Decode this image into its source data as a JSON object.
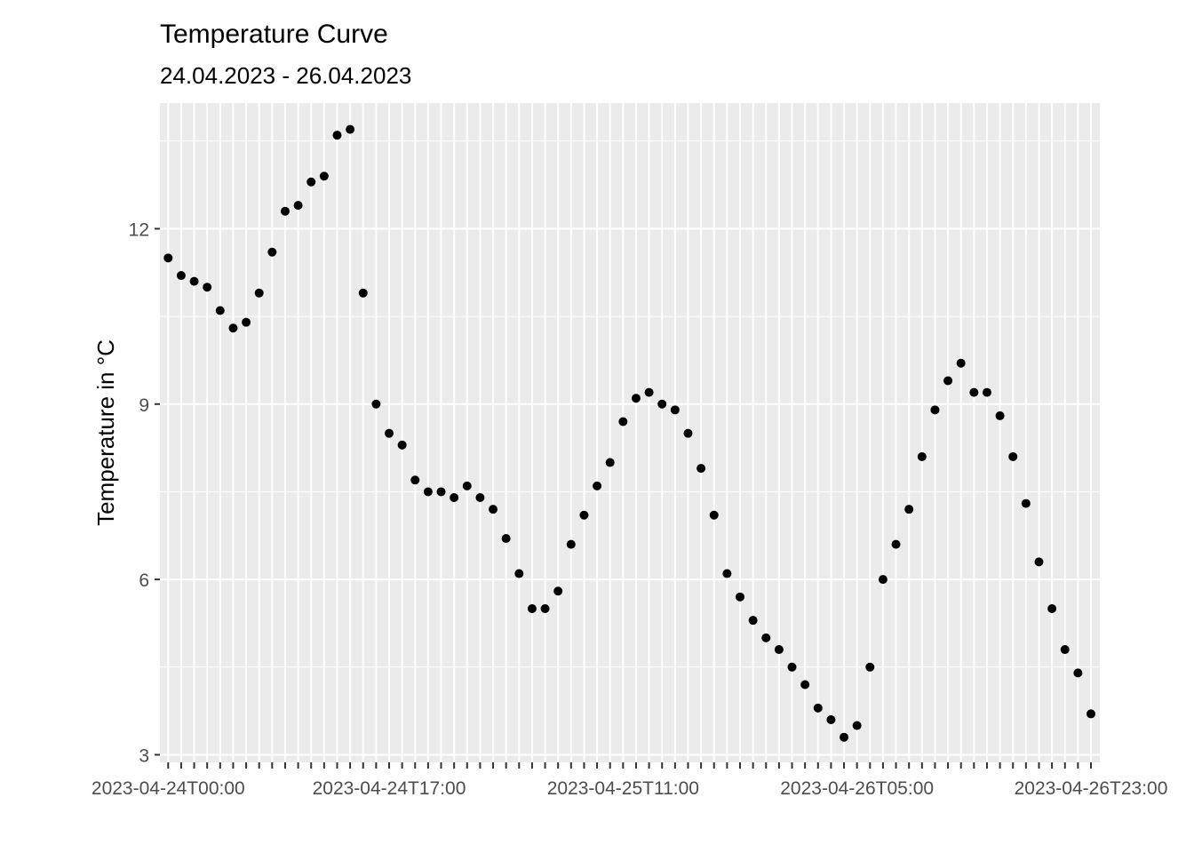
{
  "chart_data": {
    "type": "scatter",
    "title": "Temperature Curve",
    "subtitle": "24.04.2023 - 26.04.2023",
    "xlabel": "",
    "ylabel": "Temperature in °C",
    "x_start": "2023-04-24T00:00",
    "x_step_hours": 1,
    "x_tick_labels": [
      "2023-04-24T00:00",
      "2023-04-24T17:00",
      "2023-04-25T11:00",
      "2023-04-26T05:00",
      "2023-04-26T23:00"
    ],
    "y_ticks": [
      3,
      6,
      9,
      12
    ],
    "ylim": [
      2.87,
      14.15
    ],
    "grid": true,
    "series": [
      {
        "values": [
          11.5,
          11.2,
          11.1,
          11.0,
          10.6,
          10.3,
          10.4,
          10.9,
          11.6,
          12.3,
          12.4,
          12.8,
          12.9,
          13.6,
          13.7,
          10.9,
          9.0,
          8.5,
          8.3,
          7.7,
          7.5,
          7.5,
          7.4,
          7.6,
          7.4,
          7.2,
          6.7,
          6.1,
          5.5,
          5.5,
          5.8,
          6.6,
          7.1,
          7.6,
          8.0,
          8.7,
          9.1,
          9.2,
          9.0,
          8.9,
          8.5,
          7.9,
          7.1,
          6.1,
          5.7,
          5.3,
          5.0,
          4.8,
          4.5,
          4.2,
          3.8,
          3.6,
          3.3,
          3.5,
          4.5,
          6.0,
          6.6,
          7.2,
          8.1,
          8.9,
          9.4,
          9.7,
          9.2,
          9.2,
          8.8,
          8.1,
          7.3,
          6.3,
          5.5,
          4.8,
          4.4,
          3.7
        ]
      }
    ]
  }
}
